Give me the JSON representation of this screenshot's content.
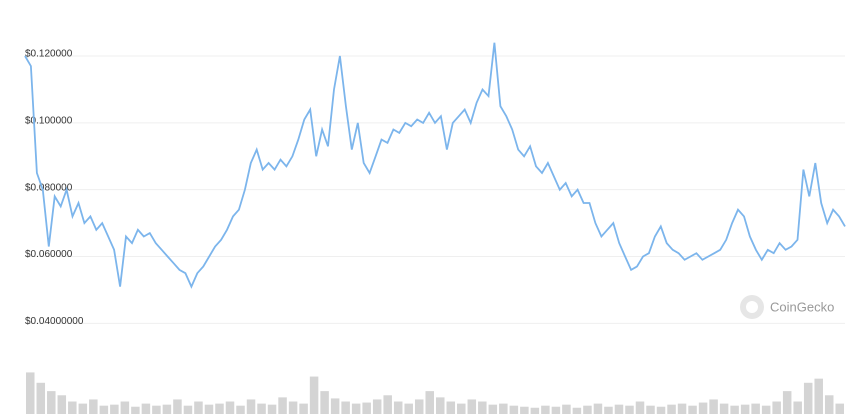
{
  "chart_data": [
    {
      "type": "line",
      "color": "#7cb5ec",
      "grid": true,
      "ylim": [
        0.038,
        0.126
      ],
      "yticks": [
        {
          "value": 0.12,
          "label": "$0.120000"
        },
        {
          "value": 0.1,
          "label": "$0.100000"
        },
        {
          "value": 0.08,
          "label": "$0.080000"
        },
        {
          "value": 0.06,
          "label": "$0.060000"
        },
        {
          "value": 0.04,
          "label": "$0.04000000"
        }
      ],
      "watermark": "CoinGecko",
      "values": [
        0.12,
        0.117,
        0.085,
        0.08,
        0.063,
        0.078,
        0.075,
        0.08,
        0.072,
        0.076,
        0.07,
        0.072,
        0.068,
        0.07,
        0.066,
        0.062,
        0.051,
        0.066,
        0.064,
        0.068,
        0.066,
        0.067,
        0.064,
        0.062,
        0.06,
        0.058,
        0.056,
        0.055,
        0.051,
        0.055,
        0.057,
        0.06,
        0.063,
        0.065,
        0.068,
        0.072,
        0.074,
        0.08,
        0.088,
        0.092,
        0.086,
        0.088,
        0.086,
        0.089,
        0.087,
        0.09,
        0.095,
        0.101,
        0.104,
        0.09,
        0.098,
        0.093,
        0.11,
        0.12,
        0.105,
        0.092,
        0.1,
        0.088,
        0.085,
        0.09,
        0.095,
        0.094,
        0.098,
        0.097,
        0.1,
        0.099,
        0.101,
        0.1,
        0.103,
        0.1,
        0.102,
        0.092,
        0.1,
        0.102,
        0.104,
        0.1,
        0.106,
        0.11,
        0.108,
        0.124,
        0.105,
        0.102,
        0.098,
        0.092,
        0.09,
        0.093,
        0.087,
        0.085,
        0.088,
        0.084,
        0.08,
        0.082,
        0.078,
        0.08,
        0.076,
        0.076,
        0.07,
        0.066,
        0.068,
        0.07,
        0.064,
        0.06,
        0.056,
        0.057,
        0.06,
        0.061,
        0.066,
        0.069,
        0.064,
        0.062,
        0.061,
        0.059,
        0.06,
        0.061,
        0.059,
        0.06,
        0.061,
        0.062,
        0.065,
        0.07,
        0.074,
        0.072,
        0.066,
        0.062,
        0.059,
        0.062,
        0.061,
        0.064,
        0.062,
        0.063,
        0.065,
        0.086,
        0.078,
        0.088,
        0.076,
        0.07,
        0.074,
        0.072,
        0.069
      ]
    },
    {
      "type": "bar",
      "color": "#d4d4d4",
      "ylim": [
        0,
        50
      ],
      "values": [
        40,
        30,
        22,
        18,
        12,
        10,
        14,
        8,
        9,
        12,
        7,
        10,
        8,
        9,
        14,
        8,
        12,
        9,
        10,
        12,
        8,
        14,
        10,
        9,
        16,
        12,
        10,
        36,
        22,
        15,
        12,
        10,
        11,
        14,
        18,
        12,
        10,
        14,
        22,
        16,
        12,
        10,
        14,
        12,
        9,
        10,
        8,
        7,
        6,
        8,
        7,
        9,
        6,
        8,
        10,
        7,
        9,
        8,
        12,
        8,
        7,
        9,
        10,
        8,
        11,
        14,
        10,
        8,
        9,
        10,
        8,
        12,
        22,
        12,
        30,
        34,
        18,
        10
      ]
    }
  ]
}
